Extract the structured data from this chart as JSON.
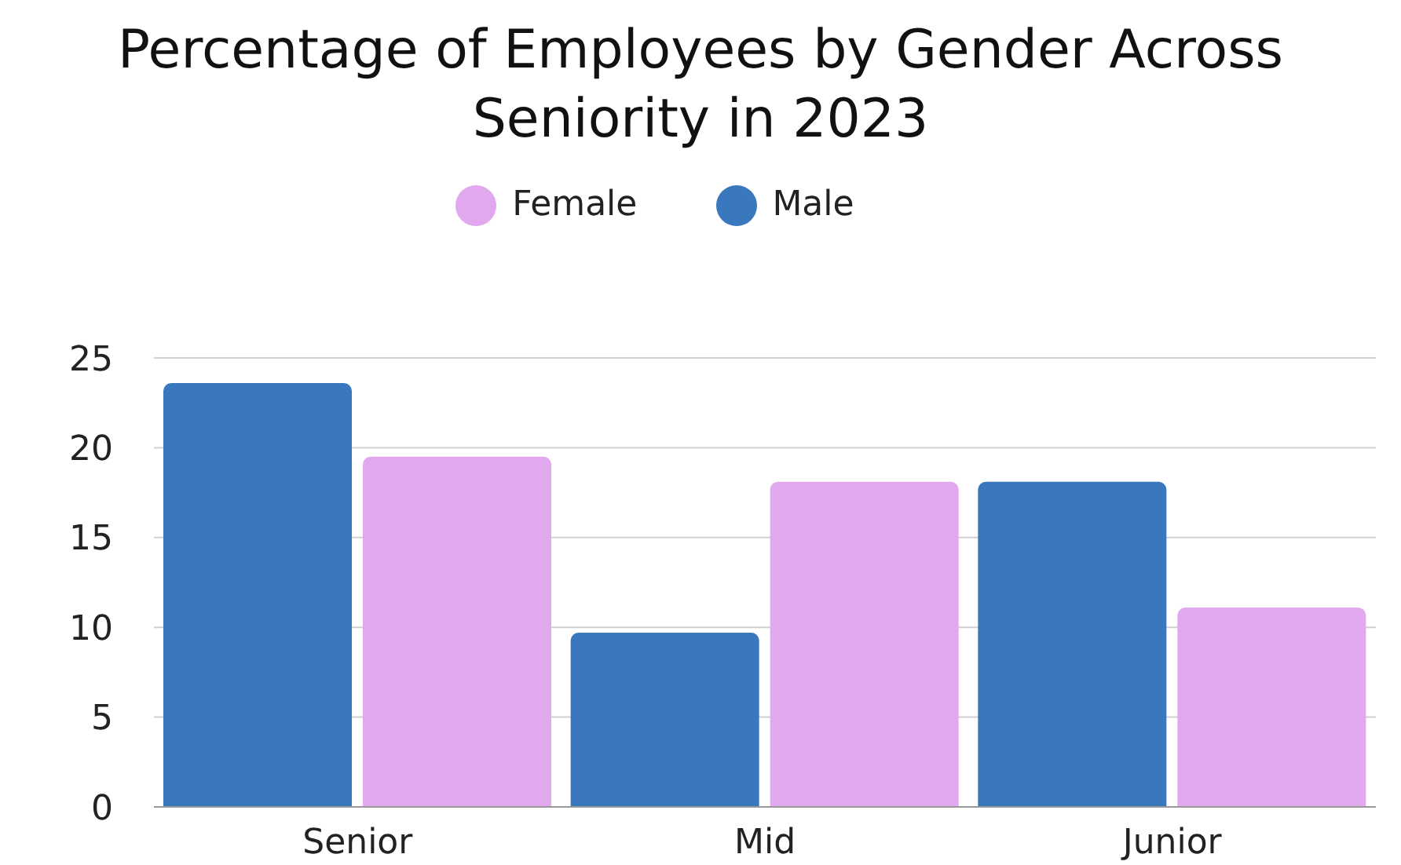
{
  "chart_data": {
    "type": "bar",
    "title": "Percentage of Employees by Gender Across Seniority in 2023",
    "categories": [
      "Senior",
      "Mid",
      "Junior"
    ],
    "series": [
      {
        "name": "Male",
        "color": "#3a78bd",
        "values": [
          23.6,
          9.7,
          18.1
        ]
      },
      {
        "name": "Female",
        "color": "#e2a8ee",
        "values": [
          19.5,
          18.1,
          11.1
        ]
      }
    ],
    "ylim": [
      0,
      25
    ],
    "yticks": [
      0,
      5,
      10,
      15,
      20,
      25
    ],
    "grid": "y",
    "legend": "top"
  }
}
